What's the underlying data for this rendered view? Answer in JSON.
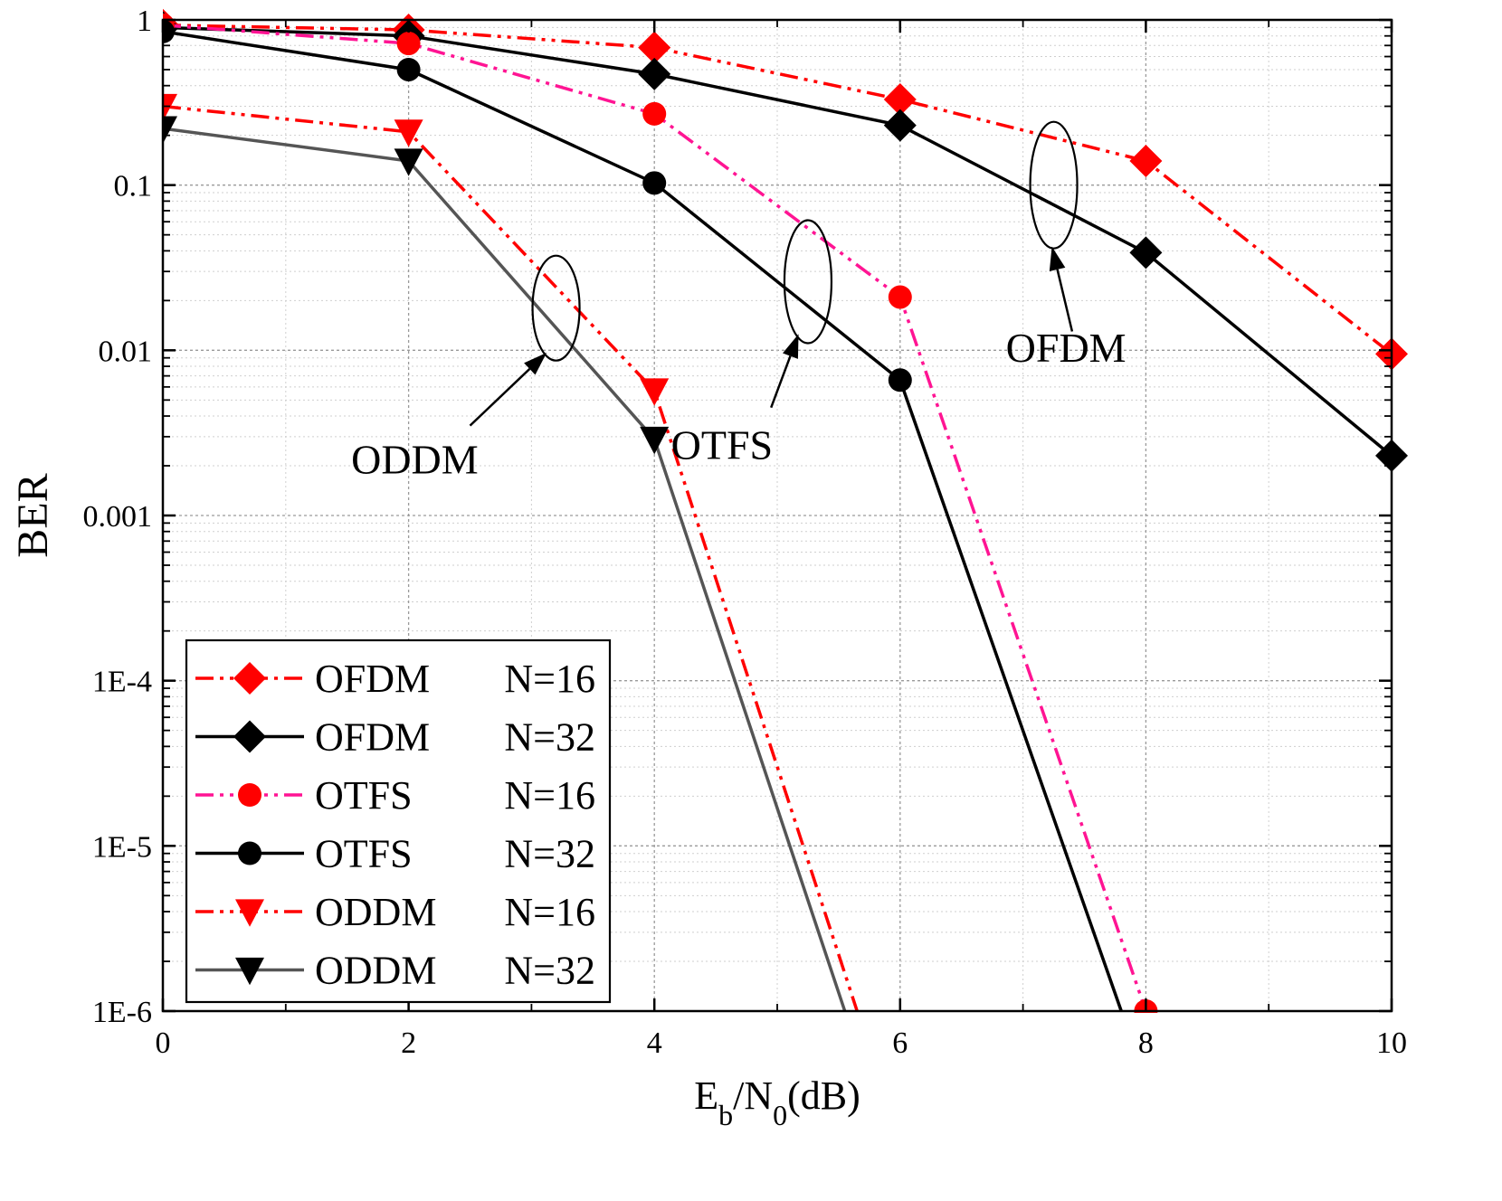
{
  "chart_data": {
    "type": "line",
    "title": "",
    "xlabel": {
      "main": "E",
      "sub1": "b",
      "mid": "/N",
      "sub2": "0",
      "tail": "(dB)"
    },
    "ylabel": "BER",
    "x_scale": "linear",
    "y_scale": "log",
    "xlim": [
      0,
      10
    ],
    "ylim": [
      1e-06,
      1
    ],
    "x_ticks": [
      {
        "value": 0,
        "label": "0"
      },
      {
        "value": 2,
        "label": "2"
      },
      {
        "value": 4,
        "label": "4"
      },
      {
        "value": 6,
        "label": "6"
      },
      {
        "value": 8,
        "label": "8"
      },
      {
        "value": 10,
        "label": "10"
      }
    ],
    "y_ticks": [
      {
        "value": 1,
        "label": "1"
      },
      {
        "value": 0.1,
        "label": "0.1"
      },
      {
        "value": 0.01,
        "label": "0.01"
      },
      {
        "value": 0.001,
        "label": "0.001"
      },
      {
        "value": 0.0001,
        "label": "1E-4"
      },
      {
        "value": 1e-05,
        "label": "1E-5"
      },
      {
        "value": 1e-06,
        "label": "1E-6"
      }
    ],
    "grid": true,
    "legend_position": "bottom-left",
    "series": [
      {
        "name": "OFDM",
        "n_label": "N=16",
        "color": "#ff0000",
        "dash": "dashdotdot",
        "marker": "diamond",
        "x": [
          0,
          2,
          4,
          6,
          8,
          10
        ],
        "y": [
          0.93,
          0.87,
          0.68,
          0.33,
          0.14,
          0.0095
        ]
      },
      {
        "name": "OFDM",
        "n_label": "N=32",
        "color": "#000000",
        "dash": "solid",
        "marker": "diamond",
        "x": [
          0,
          2,
          4,
          6,
          8,
          10
        ],
        "y": [
          0.9,
          0.8,
          0.47,
          0.23,
          0.039,
          0.0023
        ]
      },
      {
        "name": "OTFS",
        "n_label": "N=16",
        "color": "#ff0000",
        "line_color": "#ff1493",
        "dash": "dashdotdot",
        "marker": "circle",
        "x": [
          0,
          2,
          4,
          6,
          8
        ],
        "y": [
          0.93,
          0.72,
          0.27,
          0.021,
          1e-06
        ]
      },
      {
        "name": "OTFS",
        "n_label": "N=32",
        "color": "#000000",
        "dash": "solid",
        "marker": "circle",
        "x": [
          0,
          2,
          4,
          6,
          7.8
        ],
        "y": [
          0.85,
          0.5,
          0.103,
          0.0066,
          1e-06
        ]
      },
      {
        "name": "ODDM",
        "n_label": "N=16",
        "color": "#ff0000",
        "dash": "dashdotdot",
        "marker": "triangle-down",
        "x": [
          0,
          2,
          4,
          5.65
        ],
        "y": [
          0.3,
          0.21,
          0.0057,
          1e-06
        ]
      },
      {
        "name": "ODDM",
        "n_label": "N=32",
        "color": "#000000",
        "line_color": "#555555",
        "dash": "solid",
        "marker": "triangle-down",
        "x": [
          0,
          2,
          4,
          5.55
        ],
        "y": [
          0.22,
          0.14,
          0.0029,
          1e-06
        ]
      }
    ],
    "annotations": [
      {
        "text": "ODDM",
        "ellipse_center": [
          3.2,
          0.018
        ],
        "arrow_from": [
          2.5,
          0.0035
        ],
        "text_at": [
          2.05,
          0.0018
        ]
      },
      {
        "text": "OTFS",
        "ellipse_center": [
          5.25,
          0.026
        ],
        "arrow_from": [
          4.95,
          0.0045
        ],
        "text_at": [
          4.55,
          0.0022
        ]
      },
      {
        "text": "OFDM",
        "ellipse_center": [
          7.25,
          0.1
        ],
        "arrow_from": [
          7.4,
          0.013
        ],
        "text_at": [
          7.35,
          0.0085
        ]
      }
    ]
  }
}
